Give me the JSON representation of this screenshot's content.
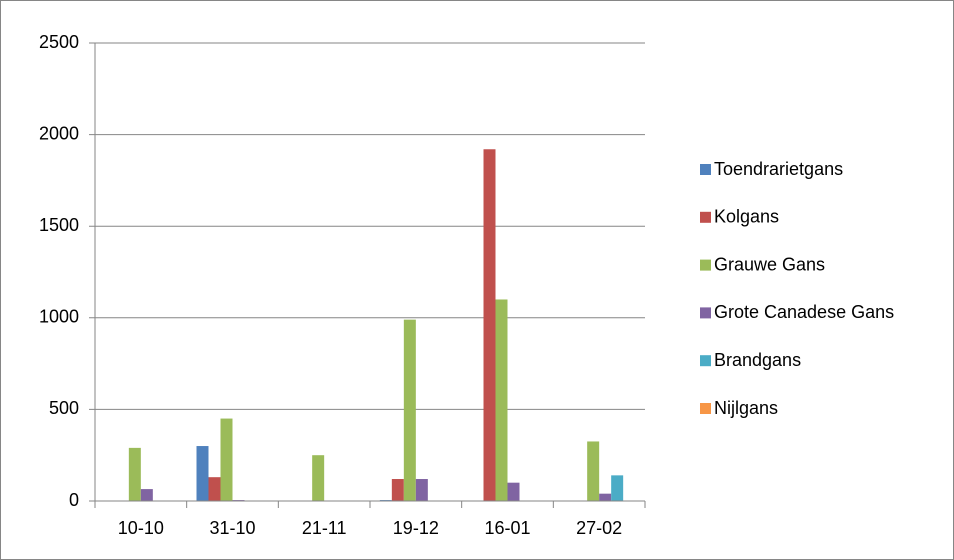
{
  "chart_data": {
    "type": "bar",
    "categories": [
      "10-10",
      "31-10",
      "21-11",
      "19-12",
      "16-01",
      "27-02"
    ],
    "series": [
      {
        "name": "Toendrarietgans",
        "color": "#4f81bd",
        "values": [
          0,
          300,
          0,
          5,
          0,
          0
        ]
      },
      {
        "name": "Kolgans",
        "color": "#c0504d",
        "values": [
          0,
          130,
          0,
          120,
          1920,
          0
        ]
      },
      {
        "name": "Grauwe Gans",
        "color": "#9bbb59",
        "values": [
          290,
          450,
          250,
          990,
          1100,
          325
        ]
      },
      {
        "name": "Grote Canadese Gans",
        "color": "#8064a2",
        "values": [
          65,
          5,
          0,
          120,
          100,
          40
        ]
      },
      {
        "name": "Brandgans",
        "color": "#4bacc6",
        "values": [
          0,
          0,
          0,
          0,
          0,
          140
        ]
      },
      {
        "name": "Nijlgans",
        "color": "#f79646",
        "values": [
          0,
          0,
          0,
          0,
          0,
          0
        ]
      }
    ],
    "ylim": [
      0,
      2500
    ],
    "yticks": [
      0,
      500,
      1000,
      1500,
      2000,
      2500
    ],
    "grid": true,
    "legend": "right"
  }
}
